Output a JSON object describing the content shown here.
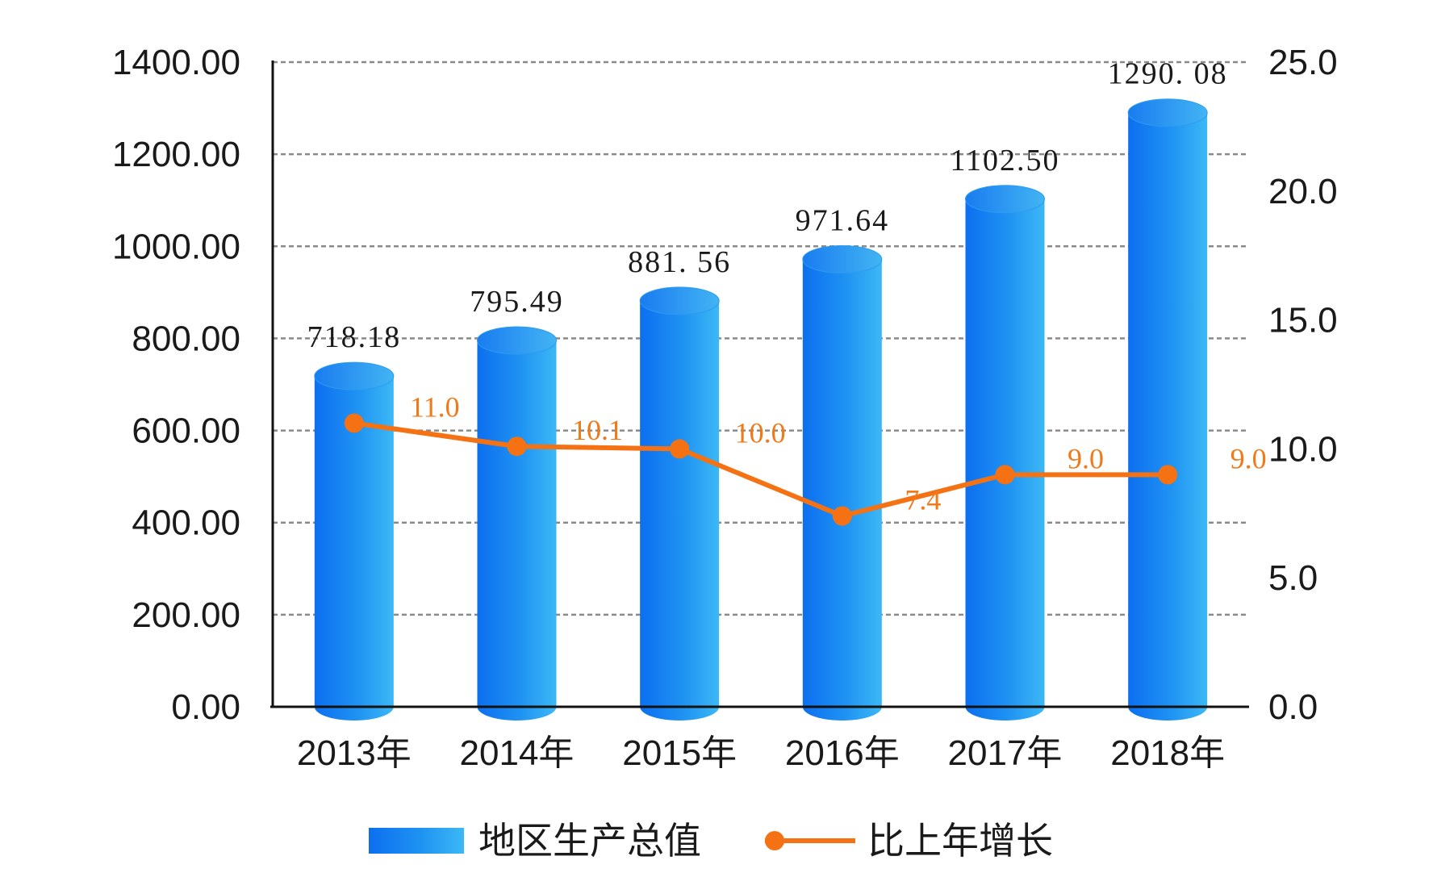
{
  "chart_data": {
    "type": "bar",
    "categories": [
      "2013年",
      "2014年",
      "2015年",
      "2016年",
      "2017年",
      "2018年"
    ],
    "series": [
      {
        "name": "地区生产总值",
        "type": "bar",
        "axis": "left",
        "values": [
          718.18,
          795.49,
          881.56,
          971.64,
          1102.5,
          1290.08
        ],
        "labels": [
          "718.18",
          "795.49",
          "881. 56",
          "971.64",
          "1102.50",
          "1290. 08"
        ],
        "color": "#1a86f0"
      },
      {
        "name": "比上年增长",
        "type": "line",
        "axis": "right",
        "values": [
          11.0,
          10.1,
          10.0,
          7.4,
          9.0,
          9.0
        ],
        "labels": [
          "11.0",
          "10.1",
          "10.0",
          "7.4",
          "9.0",
          "9.0"
        ],
        "color": "#f47213"
      }
    ],
    "y_left": {
      "range": [
        0,
        1400
      ],
      "ticks": [
        "0.00",
        "200.00",
        "400.00",
        "600.00",
        "800.00",
        "1000.00",
        "1200.00",
        "1400.00"
      ]
    },
    "y_right": {
      "range": [
        0,
        25
      ],
      "ticks": [
        "0.0",
        "5.0",
        "10.0",
        "15.0",
        "20.0",
        "25.0"
      ]
    },
    "grid": true,
    "legend_position": "bottom"
  }
}
